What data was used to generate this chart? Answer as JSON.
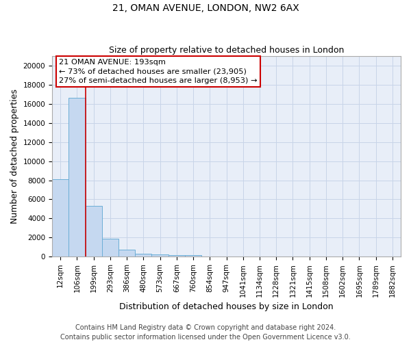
{
  "title": "21, OMAN AVENUE, LONDON, NW2 6AX",
  "subtitle": "Size of property relative to detached houses in London",
  "xlabel": "Distribution of detached houses by size in London",
  "ylabel": "Number of detached properties",
  "bar_color": "#c5d8f0",
  "bar_edge_color": "#6baed6",
  "grid_color": "#c8d4e8",
  "background_color": "#e8eef8",
  "marker_color": "#cc0000",
  "annotation_text": "21 OMAN AVENUE: 193sqm\n← 73% of detached houses are smaller (23,905)\n27% of semi-detached houses are larger (8,953) →",
  "annotation_box_color": "#cc0000",
  "annotation_bg": "#ffffff",
  "categories": [
    "12sqm",
    "106sqm",
    "199sqm",
    "293sqm",
    "386sqm",
    "480sqm",
    "573sqm",
    "667sqm",
    "760sqm",
    "854sqm",
    "947sqm",
    "1041sqm",
    "1134sqm",
    "1228sqm",
    "1321sqm",
    "1415sqm",
    "1508sqm",
    "1602sqm",
    "1695sqm",
    "1789sqm",
    "1882sqm"
  ],
  "values": [
    8100,
    16600,
    5300,
    1850,
    750,
    300,
    200,
    150,
    130,
    0,
    0,
    0,
    0,
    0,
    0,
    0,
    0,
    0,
    0,
    0,
    0
  ],
  "ylim": [
    0,
    21000
  ],
  "yticks": [
    0,
    2000,
    4000,
    6000,
    8000,
    10000,
    12000,
    14000,
    16000,
    18000,
    20000
  ],
  "red_line_x": 1.5,
  "footer_text": "Contains HM Land Registry data © Crown copyright and database right 2024.\nContains public sector information licensed under the Open Government Licence v3.0.",
  "title_fontsize": 10,
  "subtitle_fontsize": 9,
  "axis_label_fontsize": 9,
  "tick_fontsize": 7.5,
  "footer_fontsize": 7
}
